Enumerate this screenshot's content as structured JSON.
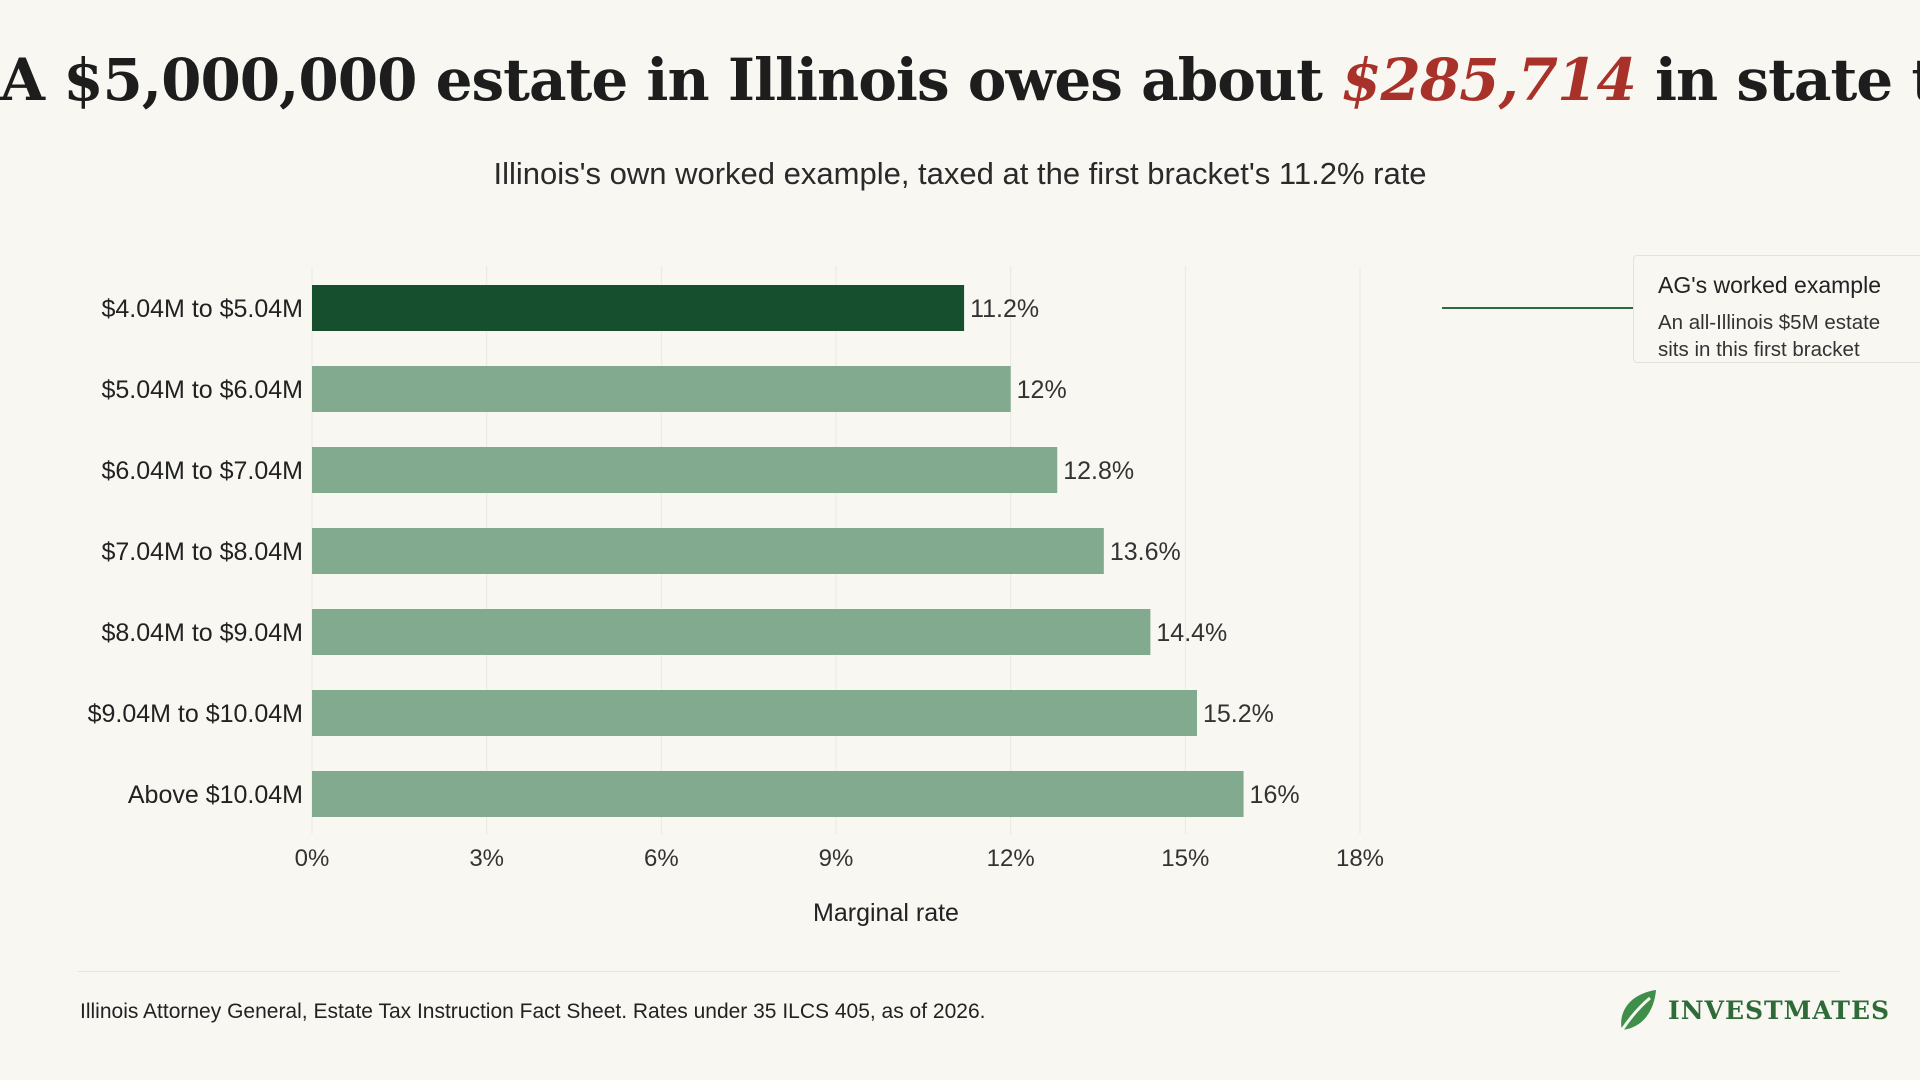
{
  "header": {
    "title_before": "A $5,000,000 estate in Illinois owes about ",
    "title_highlight": "$285,714",
    "title_after": " in state tax",
    "subtitle": "Illinois's own worked example, taxed at the first bracket's 11.2% rate"
  },
  "chart_data": {
    "type": "bar",
    "orientation": "horizontal",
    "categories": [
      "$4.04M to $5.04M",
      "$5.04M to $6.04M",
      "$6.04M to $7.04M",
      "$7.04M to $8.04M",
      "$8.04M to $9.04M",
      "$9.04M to $10.04M",
      "Above $10.04M"
    ],
    "values": [
      11.2,
      12,
      12.8,
      13.6,
      14.4,
      15.2,
      16
    ],
    "value_labels": [
      "11.2%",
      "12%",
      "12.8%",
      "13.6%",
      "14.4%",
      "15.2%",
      "16%"
    ],
    "highlight_index": 0,
    "xlabel": "Marginal rate",
    "xlim": [
      0,
      18
    ],
    "xticks": [
      0,
      3,
      6,
      9,
      12,
      15,
      18
    ],
    "xtick_labels": [
      "0%",
      "3%",
      "6%",
      "9%",
      "12%",
      "15%",
      "18%"
    ],
    "grid": true,
    "colors": {
      "highlight": "#154f2e",
      "default": "#82aa8f"
    }
  },
  "annotation": {
    "title": "AG's worked example",
    "body_line1": "An all-Illinois $5M estate",
    "body_line2": "sits in this first bracket"
  },
  "footer": {
    "source": "Illinois Attorney General, Estate Tax Instruction Fact Sheet. Rates under 35 ILCS 405, as of 2026.",
    "logo_text": "INVESTMATES"
  }
}
